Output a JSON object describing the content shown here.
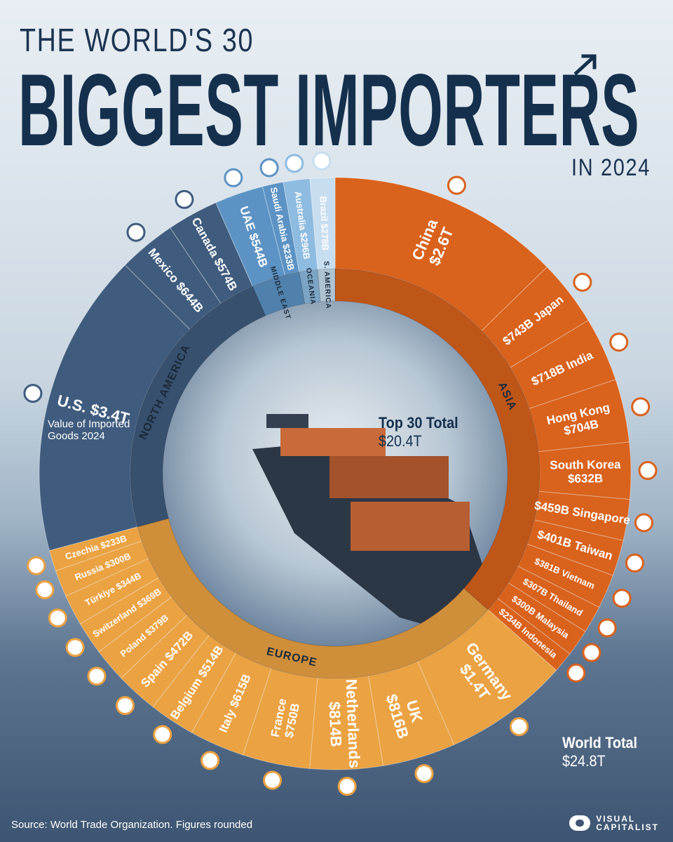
{
  "header": {
    "pre_title": "THE WORLD'S 30",
    "title": "BIGGEST IMPORTERS",
    "post_title": "IN 2024"
  },
  "callouts": {
    "top30_label": "Top 30 Total",
    "top30_value": "$20.4T",
    "world_label": "World Total",
    "world_value": "$24.8T",
    "us_note_line1": "Value of Imported",
    "us_note_line2": "Goods 2024"
  },
  "footer": {
    "source": "Source: World Trade Organization. Figures rounded",
    "logo_line1": "VISUAL",
    "logo_line2": "CAPITALIST"
  },
  "colors": {
    "asia": "#d9621c",
    "europe": "#eba242",
    "north_america": "#3f5c7e",
    "middle_east": "#5c93c4",
    "oceania": "#8ebbe0",
    "south_america": "#c7def0",
    "title": "#15304d"
  },
  "chart_data": {
    "type": "pie",
    "subtype": "donut",
    "unit": "USD",
    "total_top30": "$20.4T",
    "total_world": "$24.8T",
    "regions": [
      {
        "name": "ASIA",
        "label": "ASIA",
        "color": "#d9621c"
      },
      {
        "name": "EUROPE",
        "label": "EUROPE",
        "color": "#eba242"
      },
      {
        "name": "NORTH AMERICA",
        "label": "NORTH AMERICA",
        "color": "#3f5c7e"
      },
      {
        "name": "MIDDLE EAST",
        "label": "MIDDLE EAST",
        "color": "#5c93c4"
      },
      {
        "name": "OCEANIA",
        "label": "OCEANIA",
        "color": "#8ebbe0"
      },
      {
        "name": "S. AMERICA",
        "label": "S. AMERICA",
        "color": "#c7def0"
      }
    ],
    "slices": [
      {
        "country": "China",
        "label": "China",
        "value_label": "$2.6T",
        "value_b": 2600,
        "region": "ASIA",
        "flag": "cn-flag"
      },
      {
        "country": "Japan",
        "label": "$743B Japan",
        "value_b": 743,
        "region": "ASIA",
        "flag": "jp-flag"
      },
      {
        "country": "India",
        "label": "$718B India",
        "value_b": 718,
        "region": "ASIA",
        "flag": "in-flag"
      },
      {
        "country": "Hong Kong",
        "label": "Hong Kong",
        "value_label": "$704B",
        "value_b": 704,
        "region": "ASIA",
        "flag": "hk-flag"
      },
      {
        "country": "South Korea",
        "label": "South Korea",
        "value_label": "$632B",
        "value_b": 632,
        "region": "ASIA",
        "flag": "kr-flag"
      },
      {
        "country": "Singapore",
        "label": "$459B Singapore",
        "value_b": 459,
        "region": "ASIA",
        "flag": "sg-flag"
      },
      {
        "country": "Taiwan",
        "label": "$401B Taiwan",
        "value_b": 401,
        "region": "ASIA",
        "flag": "tw-flag"
      },
      {
        "country": "Vietnam",
        "label": "$381B Vietnam",
        "value_b": 381,
        "region": "ASIA",
        "flag": "vn-flag"
      },
      {
        "country": "Thailand",
        "label": "$307B Thailand",
        "value_b": 307,
        "region": "ASIA",
        "flag": "th-flag"
      },
      {
        "country": "Malaysia",
        "label": "$300B Malaysia",
        "value_b": 300,
        "region": "ASIA",
        "flag": "my-flag"
      },
      {
        "country": "Indonesia",
        "label": "$234B Indonesia",
        "value_b": 234,
        "region": "ASIA",
        "flag": "id-flag"
      },
      {
        "country": "Germany",
        "label": "Germany",
        "value_label": "$1.4T",
        "value_b": 1400,
        "region": "EUROPE",
        "flag": "de-flag"
      },
      {
        "country": "UK",
        "label": "UK",
        "value_label": "$816B",
        "value_b": 816,
        "region": "EUROPE",
        "flag": "gb-flag"
      },
      {
        "country": "Netherlands",
        "label": "Netherlands",
        "value_label": "$814B",
        "value_b": 814,
        "region": "EUROPE",
        "flag": "nl-flag"
      },
      {
        "country": "France",
        "label": "France",
        "value_label": "$750B",
        "value_b": 750,
        "region": "EUROPE",
        "flag": "fr-flag"
      },
      {
        "country": "Italy",
        "label": "Italy $615B",
        "value_b": 615,
        "region": "EUROPE",
        "flag": "it-flag"
      },
      {
        "country": "Belgium",
        "label": "Belgium $514B",
        "value_b": 514,
        "region": "EUROPE",
        "flag": "be-flag"
      },
      {
        "country": "Spain",
        "label": "Spain $472B",
        "value_b": 472,
        "region": "EUROPE",
        "flag": "es-flag"
      },
      {
        "country": "Poland",
        "label": "Poland $379B",
        "value_b": 379,
        "region": "EUROPE",
        "flag": "pl-flag"
      },
      {
        "country": "Switzerland",
        "label": "Switzerland $369B",
        "value_b": 369,
        "region": "EUROPE",
        "flag": "ch-flag"
      },
      {
        "country": "Türkiye",
        "label": "Türkiye $344B",
        "value_b": 344,
        "region": "EUROPE",
        "flag": "tr-flag"
      },
      {
        "country": "Russia",
        "label": "Russia $300B",
        "value_b": 300,
        "region": "EUROPE",
        "flag": "ru-flag"
      },
      {
        "country": "Czechia",
        "label": "Czechia $233B",
        "value_b": 233,
        "region": "EUROPE",
        "flag": "cz-flag"
      },
      {
        "country": "U.S.",
        "label": "U.S. $3.4T",
        "value_b": 3400,
        "region": "NORTH AMERICA",
        "flag": "us-flag"
      },
      {
        "country": "Mexico",
        "label": "Mexico $644B",
        "value_b": 644,
        "region": "NORTH AMERICA",
        "flag": "mx-flag"
      },
      {
        "country": "Canada",
        "label": "Canada $574B",
        "value_b": 574,
        "region": "NORTH AMERICA",
        "flag": "ca-flag"
      },
      {
        "country": "UAE",
        "label": "UAE $544B",
        "value_b": 544,
        "region": "MIDDLE EAST",
        "flag": "ae-flag"
      },
      {
        "country": "Saudi Arabia",
        "label": "Saudi Arabia $233B",
        "value_b": 233,
        "region": "MIDDLE EAST",
        "flag": "sa-flag"
      },
      {
        "country": "Australia",
        "label": "Australia $296B",
        "value_b": 296,
        "region": "OCEANIA",
        "flag": "au-flag"
      },
      {
        "country": "Brazil",
        "label": "Brazil $278B",
        "value_b": 278,
        "region": "S. AMERICA",
        "flag": "br-flag"
      }
    ]
  }
}
